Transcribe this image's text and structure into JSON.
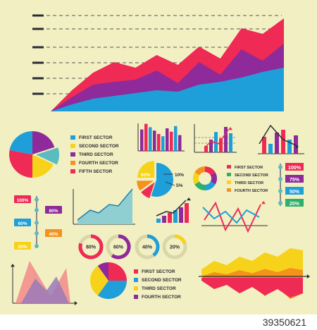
{
  "colors": {
    "background": "#f2f0c2",
    "red": "#ee2a55",
    "purple": "#8e2a9a",
    "blue": "#1f9fd9",
    "yellow": "#f7d21a",
    "orange": "#f5921e",
    "green": "#2db06a",
    "teal": "#5bbcc0",
    "dark": "#2b2b35"
  },
  "legend_1": [
    {
      "label": "FIRST SECTOR",
      "color": "#1f9fd9"
    },
    {
      "label": "SECOND SECTOR",
      "color": "#f7d21a"
    },
    {
      "label": "THIRD SECTOR",
      "color": "#8e2a9a"
    },
    {
      "label": "FOURTH SECTOR",
      "color": "#f5921e"
    },
    {
      "label": "FIFTH SECTOR",
      "color": "#ee2a55"
    }
  ],
  "legend_2": [
    {
      "label": "FIRST SECTOR",
      "color": "#ee2a55"
    },
    {
      "label": "SECOND SECTOR",
      "color": "#2db06a"
    },
    {
      "label": "THIRD SECTOR",
      "color": "#f7d21a"
    },
    {
      "label": "FOURTH SECTOR",
      "color": "#f5921e"
    }
  ],
  "legend_3": [
    {
      "label": "FIRST SECTOR",
      "color": "#ee2a55"
    },
    {
      "label": "SECOND SECTOR",
      "color": "#1f9fd9"
    },
    {
      "label": "THIRD SECTOR",
      "color": "#f7d21a"
    },
    {
      "label": "FOURTH SECTOR",
      "color": "#8e2a9a"
    }
  ],
  "pie_labels": [
    "60%",
    "10%",
    "5%"
  ],
  "right_bars": [
    {
      "label": "100%",
      "color": "#ee2a55"
    },
    {
      "label": "75%",
      "color": "#8e2a9a"
    },
    {
      "label": "50%",
      "color": "#1f9fd9"
    },
    {
      "label": "25%",
      "color": "#2db06a"
    }
  ],
  "left_tags": [
    {
      "label": "100%",
      "color": "#ee2a55"
    },
    {
      "label": "80%",
      "color": "#8e2a9a"
    },
    {
      "label": "60%",
      "color": "#1f9fd9"
    },
    {
      "label": "40%",
      "color": "#f5921e"
    },
    {
      "label": "20%",
      "color": "#f7d21a"
    }
  ],
  "donuts": [
    {
      "label": "80%",
      "value": 0.8,
      "color": "#ee2a55"
    },
    {
      "label": "60%",
      "value": 0.6,
      "color": "#8e2a9a"
    },
    {
      "label": "40%",
      "value": 0.4,
      "color": "#1f9fd9"
    },
    {
      "label": "20%",
      "value": 0.2,
      "color": "#f7d21a"
    }
  ],
  "watermark": "39350621",
  "chart_data": [
    {
      "type": "area",
      "series": [
        {
          "color": "#ee2a55",
          "values": [
            0,
            30,
            55,
            70,
            62,
            80,
            66,
            92,
            75,
            118,
            110,
            132
          ]
        },
        {
          "color": "#8e2a9a",
          "values": [
            0,
            20,
            38,
            42,
            45,
            58,
            40,
            70,
            52,
            88,
            72,
            96
          ]
        },
        {
          "color": "#1f9fd9",
          "values": [
            0,
            10,
            18,
            22,
            26,
            30,
            28,
            38,
            42,
            48,
            56,
            62
          ]
        }
      ]
    },
    {
      "type": "bar",
      "values": [
        38,
        48,
        42,
        36,
        30,
        26,
        40,
        34,
        44,
        28
      ]
    },
    {
      "type": "bar",
      "values": [
        10,
        20,
        32,
        22,
        40,
        30
      ]
    },
    {
      "type": "bar",
      "values": [
        24,
        14,
        30,
        34,
        20,
        26
      ]
    },
    {
      "type": "pie",
      "values": [
        0.6,
        0.1,
        0.05,
        0.25
      ]
    },
    {
      "type": "line",
      "values": [
        0,
        10,
        8,
        20,
        18,
        30,
        50
      ]
    },
    {
      "type": "bar",
      "values": [
        6,
        10,
        14,
        18,
        22,
        28
      ]
    },
    {
      "type": "line",
      "series": [
        [
          0,
          30,
          10,
          40,
          15,
          35,
          5
        ],
        [
          20,
          5,
          35,
          10,
          40,
          15,
          45
        ]
      ]
    },
    {
      "type": "area",
      "values": [
        0,
        30,
        45,
        20,
        50,
        30,
        35
      ]
    },
    {
      "type": "area",
      "series": [
        [
          10,
          30,
          20,
          40,
          30,
          50,
          40,
          60,
          55
        ],
        [
          0,
          20,
          10,
          30,
          15,
          35,
          20,
          40,
          30
        ]
      ]
    }
  ]
}
